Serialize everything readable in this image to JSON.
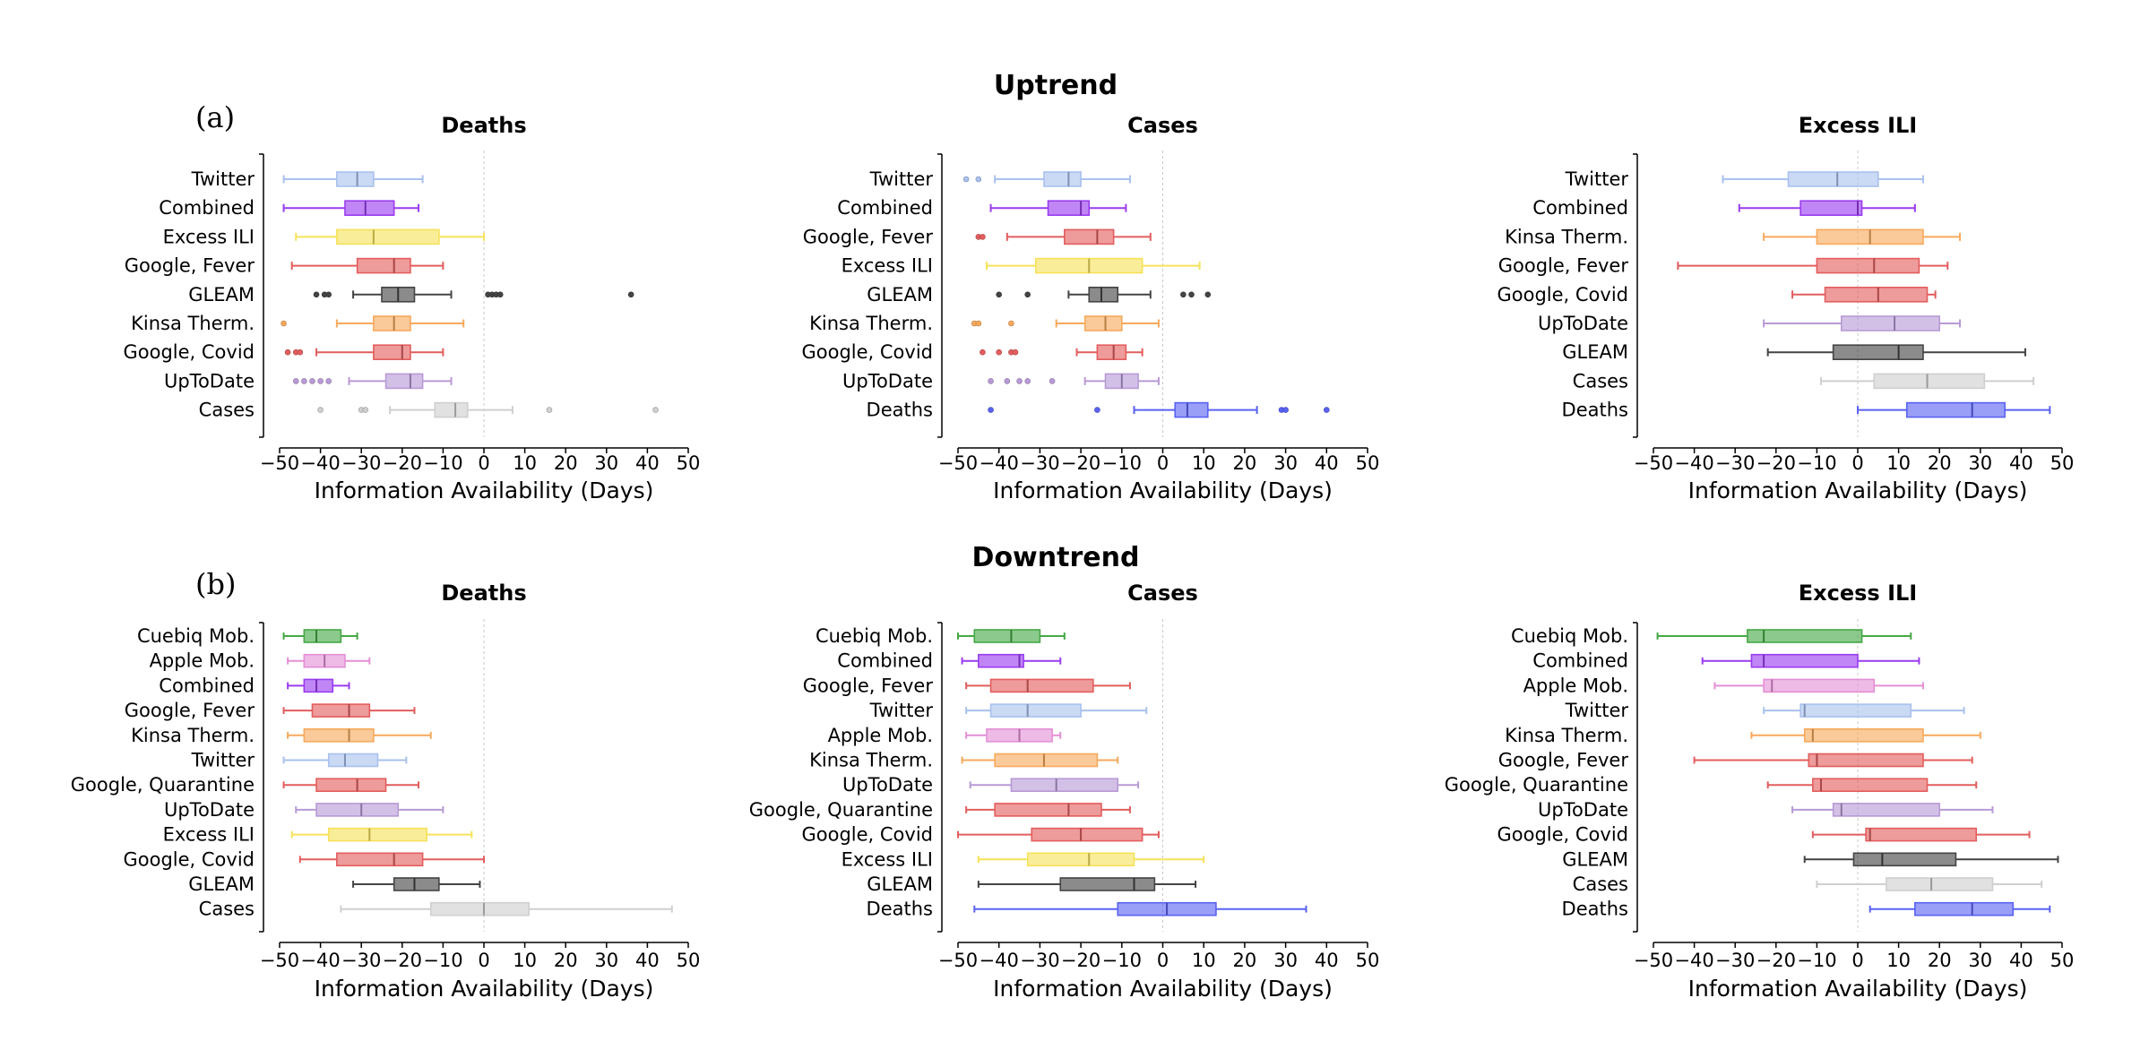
{
  "figure": {
    "row_titles": [
      "Uptrend",
      "Downtrend"
    ],
    "panel_labels": [
      "(a)",
      "(b)"
    ]
  },
  "colors": {
    "Twitter": "#a9c1ee",
    "Combined": "#9a3cf0",
    "Excess ILI": "#f6e25a",
    "Google, Fever": "#e35d5d",
    "Google, Covid": "#e35d5d",
    "Google, Quarantine": "#e35d5d",
    "GLEAM": "#444444",
    "Kinsa Therm.": "#f7a95c",
    "UpToDate": "#b89ad6",
    "Cases": "#cfcfcf",
    "Deaths": "#5a62f2",
    "Cuebiq Mob.": "#45a845",
    "Apple Mob.": "#e48fd6"
  },
  "chart_data": [
    {
      "type": "box",
      "row": 0,
      "col": 0,
      "title": "Deaths",
      "xlabel": "Information Availability (Days)",
      "xlim": [
        -50,
        50
      ],
      "xticks": [
        -50,
        -40,
        -30,
        -20,
        -10,
        0,
        10,
        20,
        30,
        40,
        50
      ],
      "series": [
        {
          "name": "Twitter",
          "whislo": -49,
          "q1": -36,
          "med": -31,
          "q3": -27,
          "whishi": -15,
          "fliers": []
        },
        {
          "name": "Combined",
          "whislo": -49,
          "q1": -34,
          "med": -29,
          "q3": -22,
          "whishi": -16,
          "fliers": []
        },
        {
          "name": "Excess ILI",
          "whislo": -46,
          "q1": -36,
          "med": -27,
          "q3": -11,
          "whishi": 0,
          "fliers": []
        },
        {
          "name": "Google, Fever",
          "whislo": -47,
          "q1": -31,
          "med": -22,
          "q3": -18,
          "whishi": -10,
          "fliers": []
        },
        {
          "name": "GLEAM",
          "whislo": -32,
          "q1": -25,
          "med": -21,
          "q3": -17,
          "whishi": -8,
          "fliers": [
            -41,
            -39,
            -38,
            1,
            2,
            3,
            4,
            36
          ]
        },
        {
          "name": "Kinsa Therm.",
          "whislo": -36,
          "q1": -27,
          "med": -22,
          "q3": -18,
          "whishi": -5,
          "fliers": [
            -49
          ]
        },
        {
          "name": "Google, Covid",
          "whislo": -41,
          "q1": -27,
          "med": -20,
          "q3": -18,
          "whishi": -10,
          "fliers": [
            -48,
            -46,
            -45
          ]
        },
        {
          "name": "UpToDate",
          "whislo": -33,
          "q1": -24,
          "med": -18,
          "q3": -15,
          "whishi": -8,
          "fliers": [
            -46,
            -44,
            -42,
            -40,
            -38
          ]
        },
        {
          "name": "Cases",
          "whislo": -23,
          "q1": -12,
          "med": -7,
          "q3": -4,
          "whishi": 7,
          "fliers": [
            -40,
            -30,
            -29,
            16,
            42
          ]
        }
      ]
    },
    {
      "type": "box",
      "row": 0,
      "col": 1,
      "title": "Cases",
      "xlabel": "Information Availability (Days)",
      "xlim": [
        -50,
        50
      ],
      "xticks": [
        -50,
        -40,
        -30,
        -20,
        -10,
        0,
        10,
        20,
        30,
        40,
        50
      ],
      "series": [
        {
          "name": "Twitter",
          "whislo": -41,
          "q1": -29,
          "med": -23,
          "q3": -20,
          "whishi": -8,
          "fliers": [
            -48,
            -45
          ]
        },
        {
          "name": "Combined",
          "whislo": -42,
          "q1": -28,
          "med": -20,
          "q3": -18,
          "whishi": -9,
          "fliers": []
        },
        {
          "name": "Google, Fever",
          "whislo": -38,
          "q1": -24,
          "med": -16,
          "q3": -12,
          "whishi": -3,
          "fliers": [
            -45,
            -44
          ]
        },
        {
          "name": "Excess ILI",
          "whislo": -43,
          "q1": -31,
          "med": -18,
          "q3": -5,
          "whishi": 9,
          "fliers": []
        },
        {
          "name": "GLEAM",
          "whislo": -23,
          "q1": -18,
          "med": -15,
          "q3": -11,
          "whishi": -3,
          "fliers": [
            -40,
            -33,
            5,
            7,
            11
          ]
        },
        {
          "name": "Kinsa Therm.",
          "whislo": -26,
          "q1": -19,
          "med": -14,
          "q3": -10,
          "whishi": -1,
          "fliers": [
            -46,
            -45,
            -37
          ]
        },
        {
          "name": "Google, Covid",
          "whislo": -21,
          "q1": -16,
          "med": -12,
          "q3": -9,
          "whishi": -5,
          "fliers": [
            -44,
            -40,
            -37,
            -36
          ]
        },
        {
          "name": "UpToDate",
          "whislo": -19,
          "q1": -14,
          "med": -10,
          "q3": -6,
          "whishi": -1,
          "fliers": [
            -42,
            -38,
            -35,
            -33,
            -27
          ]
        },
        {
          "name": "Deaths",
          "whislo": -7,
          "q1": 3,
          "med": 6,
          "q3": 11,
          "whishi": 23,
          "fliers": [
            -42,
            -16,
            29,
            30,
            40
          ]
        }
      ]
    },
    {
      "type": "box",
      "row": 0,
      "col": 2,
      "title": "Excess ILI",
      "xlabel": "Information Availability (Days)",
      "xlim": [
        -50,
        50
      ],
      "xticks": [
        -50,
        -40,
        -30,
        -20,
        -10,
        0,
        10,
        20,
        30,
        40,
        50
      ],
      "series": [
        {
          "name": "Twitter",
          "whislo": -33,
          "q1": -17,
          "med": -5,
          "q3": 5,
          "whishi": 16,
          "fliers": []
        },
        {
          "name": "Combined",
          "whislo": -29,
          "q1": -14,
          "med": 0,
          "q3": 1,
          "whishi": 14,
          "fliers": []
        },
        {
          "name": "Kinsa Therm.",
          "whislo": -23,
          "q1": -10,
          "med": 3,
          "q3": 16,
          "whishi": 25,
          "fliers": []
        },
        {
          "name": "Google, Fever",
          "whislo": -44,
          "q1": -10,
          "med": 4,
          "q3": 15,
          "whishi": 22,
          "fliers": []
        },
        {
          "name": "Google, Covid",
          "whislo": -16,
          "q1": -8,
          "med": 5,
          "q3": 17,
          "whishi": 19,
          "fliers": []
        },
        {
          "name": "UpToDate",
          "whislo": -23,
          "q1": -4,
          "med": 9,
          "q3": 20,
          "whishi": 25,
          "fliers": []
        },
        {
          "name": "GLEAM",
          "whislo": -22,
          "q1": -6,
          "med": 10,
          "q3": 16,
          "whishi": 41,
          "fliers": []
        },
        {
          "name": "Cases",
          "whislo": -9,
          "q1": 4,
          "med": 17,
          "q3": 31,
          "whishi": 43,
          "fliers": []
        },
        {
          "name": "Deaths",
          "whislo": 0,
          "q1": 12,
          "med": 28,
          "q3": 36,
          "whishi": 47,
          "fliers": []
        }
      ]
    },
    {
      "type": "box",
      "row": 1,
      "col": 0,
      "title": "Deaths",
      "xlabel": "Information Availability (Days)",
      "xlim": [
        -50,
        50
      ],
      "xticks": [
        -50,
        -40,
        -30,
        -20,
        -10,
        0,
        10,
        20,
        30,
        40,
        50
      ],
      "series": [
        {
          "name": "Cuebiq Mob.",
          "whislo": -49,
          "q1": -44,
          "med": -41,
          "q3": -35,
          "whishi": -31,
          "fliers": []
        },
        {
          "name": "Apple Mob.",
          "whislo": -48,
          "q1": -44,
          "med": -39,
          "q3": -34,
          "whishi": -28,
          "fliers": []
        },
        {
          "name": "Combined",
          "whislo": -48,
          "q1": -44,
          "med": -41,
          "q3": -37,
          "whishi": -33,
          "fliers": []
        },
        {
          "name": "Google, Fever",
          "whislo": -49,
          "q1": -42,
          "med": -33,
          "q3": -28,
          "whishi": -17,
          "fliers": []
        },
        {
          "name": "Kinsa Therm.",
          "whislo": -48,
          "q1": -44,
          "med": -33,
          "q3": -27,
          "whishi": -13,
          "fliers": []
        },
        {
          "name": "Twitter",
          "whislo": -49,
          "q1": -38,
          "med": -34,
          "q3": -26,
          "whishi": -19,
          "fliers": []
        },
        {
          "name": "Google, Quarantine",
          "whislo": -49,
          "q1": -41,
          "med": -31,
          "q3": -24,
          "whishi": -16,
          "fliers": []
        },
        {
          "name": "UpToDate",
          "whislo": -46,
          "q1": -41,
          "med": -30,
          "q3": -21,
          "whishi": -10,
          "fliers": []
        },
        {
          "name": "Excess ILI",
          "whislo": -47,
          "q1": -38,
          "med": -28,
          "q3": -14,
          "whishi": -3,
          "fliers": []
        },
        {
          "name": "Google, Covid",
          "whislo": -45,
          "q1": -36,
          "med": -22,
          "q3": -15,
          "whishi": 0,
          "fliers": []
        },
        {
          "name": "GLEAM",
          "whislo": -32,
          "q1": -22,
          "med": -17,
          "q3": -11,
          "whishi": -1,
          "fliers": []
        },
        {
          "name": "Cases",
          "whislo": -35,
          "q1": -13,
          "med": 0,
          "q3": 11,
          "whishi": 46,
          "fliers": []
        }
      ]
    },
    {
      "type": "box",
      "row": 1,
      "col": 1,
      "title": "Cases",
      "xlabel": "Information Availability (Days)",
      "xlim": [
        -50,
        50
      ],
      "xticks": [
        -50,
        -40,
        -30,
        -20,
        -10,
        0,
        10,
        20,
        30,
        40,
        50
      ],
      "series": [
        {
          "name": "Cuebiq Mob.",
          "whislo": -50,
          "q1": -46,
          "med": -37,
          "q3": -30,
          "whishi": -24,
          "fliers": []
        },
        {
          "name": "Combined",
          "whislo": -49,
          "q1": -45,
          "med": -35,
          "q3": -34,
          "whishi": -25,
          "fliers": []
        },
        {
          "name": "Google, Fever",
          "whislo": -48,
          "q1": -42,
          "med": -33,
          "q3": -17,
          "whishi": -8,
          "fliers": []
        },
        {
          "name": "Twitter",
          "whislo": -48,
          "q1": -42,
          "med": -33,
          "q3": -20,
          "whishi": -4,
          "fliers": []
        },
        {
          "name": "Apple Mob.",
          "whislo": -48,
          "q1": -43,
          "med": -35,
          "q3": -27,
          "whishi": -25,
          "fliers": []
        },
        {
          "name": "Kinsa Therm.",
          "whislo": -49,
          "q1": -41,
          "med": -29,
          "q3": -16,
          "whishi": -11,
          "fliers": []
        },
        {
          "name": "UpToDate",
          "whislo": -47,
          "q1": -37,
          "med": -26,
          "q3": -11,
          "whishi": -6,
          "fliers": []
        },
        {
          "name": "Google, Quarantine",
          "whislo": -48,
          "q1": -41,
          "med": -23,
          "q3": -15,
          "whishi": -8,
          "fliers": []
        },
        {
          "name": "Google, Covid",
          "whislo": -50,
          "q1": -32,
          "med": -20,
          "q3": -5,
          "whishi": -1,
          "fliers": []
        },
        {
          "name": "Excess ILI",
          "whislo": -45,
          "q1": -33,
          "med": -18,
          "q3": -7,
          "whishi": 10,
          "fliers": []
        },
        {
          "name": "GLEAM",
          "whislo": -45,
          "q1": -25,
          "med": -7,
          "q3": -2,
          "whishi": 8,
          "fliers": []
        },
        {
          "name": "Deaths",
          "whislo": -46,
          "q1": -11,
          "med": 1,
          "q3": 13,
          "whishi": 35,
          "fliers": []
        }
      ]
    },
    {
      "type": "box",
      "row": 1,
      "col": 2,
      "title": "Excess ILI",
      "xlabel": "Information Availability (Days)",
      "xlim": [
        -50,
        50
      ],
      "xticks": [
        -50,
        -40,
        -30,
        -20,
        -10,
        0,
        10,
        20,
        30,
        40,
        50
      ],
      "series": [
        {
          "name": "Cuebiq Mob.",
          "whislo": -49,
          "q1": -27,
          "med": -23,
          "q3": 1,
          "whishi": 13,
          "fliers": []
        },
        {
          "name": "Combined",
          "whislo": -38,
          "q1": -26,
          "med": -23,
          "q3": 0,
          "whishi": 15,
          "fliers": []
        },
        {
          "name": "Apple Mob.",
          "whislo": -35,
          "q1": -23,
          "med": -21,
          "q3": 4,
          "whishi": 16,
          "fliers": []
        },
        {
          "name": "Twitter",
          "whislo": -23,
          "q1": -14,
          "med": -13,
          "q3": 13,
          "whishi": 26,
          "fliers": []
        },
        {
          "name": "Kinsa Therm.",
          "whislo": -26,
          "q1": -13,
          "med": -11,
          "q3": 16,
          "whishi": 30,
          "fliers": []
        },
        {
          "name": "Google, Fever",
          "whislo": -40,
          "q1": -12,
          "med": -10,
          "q3": 16,
          "whishi": 28,
          "fliers": []
        },
        {
          "name": "Google, Quarantine",
          "whislo": -22,
          "q1": -11,
          "med": -9,
          "q3": 17,
          "whishi": 29,
          "fliers": []
        },
        {
          "name": "UpToDate",
          "whislo": -16,
          "q1": -6,
          "med": -4,
          "q3": 20,
          "whishi": 33,
          "fliers": []
        },
        {
          "name": "Google, Covid",
          "whislo": -11,
          "q1": 2,
          "med": 3,
          "q3": 29,
          "whishi": 42,
          "fliers": []
        },
        {
          "name": "GLEAM",
          "whislo": -13,
          "q1": -1,
          "med": 6,
          "q3": 24,
          "whishi": 49,
          "fliers": []
        },
        {
          "name": "Cases",
          "whislo": -10,
          "q1": 7,
          "med": 18,
          "q3": 33,
          "whishi": 45,
          "fliers": []
        },
        {
          "name": "Deaths",
          "whislo": 3,
          "q1": 14,
          "med": 28,
          "q3": 38,
          "whishi": 47,
          "fliers": []
        }
      ]
    }
  ]
}
